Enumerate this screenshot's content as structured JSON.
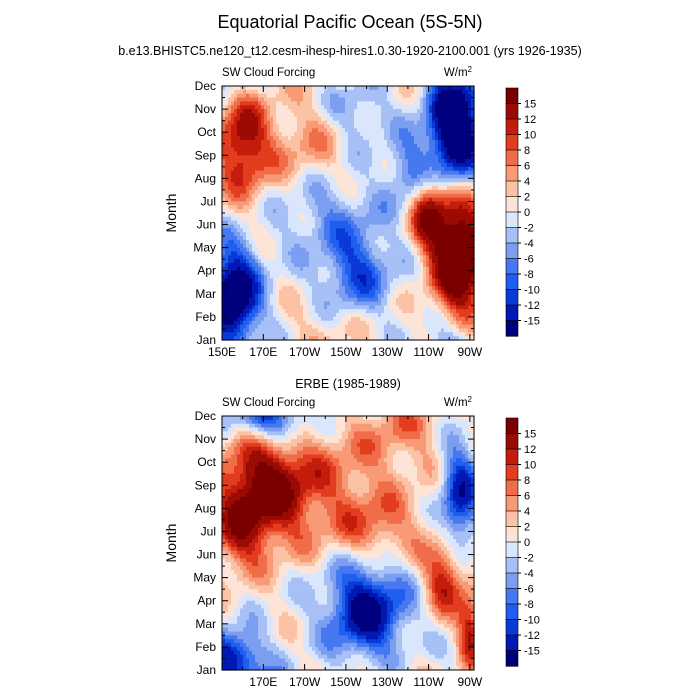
{
  "page": {
    "title": "Equatorial Pacific Ocean (5S-5N)",
    "subtitle": "b.e13.BHISTC5.ne120_t12.cesm-ihesp-hires1.0.30-1920-2100.001 (yrs 1926-1935)"
  },
  "colors": {
    "levels": [
      -15,
      -12,
      -10,
      -8,
      -6,
      -4,
      -2,
      0,
      2,
      4,
      6,
      8,
      10,
      12,
      15
    ],
    "palette": [
      "#00007f",
      "#0019b2",
      "#0a3ad6",
      "#1f5ff0",
      "#4678f0",
      "#7b9ef0",
      "#a7c0f5",
      "#dae6fb",
      "#fde4d6",
      "#fcc2a6",
      "#f99a76",
      "#f16c48",
      "#e23d1e",
      "#c41d0c",
      "#9c0a04",
      "#7a0000"
    ]
  },
  "chart_data": [
    {
      "type": "heatmap",
      "panel_title": "",
      "left_string": "SW Cloud Forcing",
      "units": "W/m2",
      "ylabel": "Month",
      "x_ticks": [
        "150E",
        "170E",
        "170W",
        "150W",
        "130W",
        "110W",
        "90W"
      ],
      "x_tick_values": [
        150,
        170,
        190,
        210,
        230,
        250,
        270
      ],
      "y_ticks": [
        "Jan",
        "Feb",
        "Mar",
        "Apr",
        "May",
        "Jun",
        "Jul",
        "Aug",
        "Sep",
        "Oct",
        "Nov",
        "Dec"
      ],
      "xlim": [
        150,
        272
      ],
      "ylim": [
        1,
        12
      ],
      "colorbar_labels": [
        "15",
        "12",
        "10",
        "8",
        "6",
        "4",
        "2",
        "0",
        "-2",
        "-4",
        "-6",
        "-8",
        "-10",
        "-12",
        "-15"
      ],
      "features": [
        {
          "lon": 265,
          "mon": 4.6,
          "slon": 9,
          "smon": 1.8,
          "amp": 24
        },
        {
          "lon": 250,
          "mon": 6.5,
          "slon": 6,
          "smon": 1.1,
          "amp": 14
        },
        {
          "lon": 263,
          "mon": 10.3,
          "slon": 9,
          "smon": 1.7,
          "amp": -24
        },
        {
          "lon": 240,
          "mon": 8.3,
          "slon": 8,
          "smon": 1.1,
          "amp": -7
        },
        {
          "lon": 155,
          "mon": 2.8,
          "slon": 9,
          "smon": 1.5,
          "amp": -22
        },
        {
          "lon": 160,
          "mon": 9.5,
          "slon": 9,
          "smon": 1.6,
          "amp": 14
        },
        {
          "lon": 215,
          "mon": 4.0,
          "slon": 12,
          "smon": 1.4,
          "amp": -10
        },
        {
          "lon": 198,
          "mon": 6.7,
          "slon": 16,
          "smon": 1.2,
          "amp": -5
        },
        {
          "lon": 215,
          "mon": 11,
          "slon": 10,
          "smon": 1.0,
          "amp": -5
        },
        {
          "lon": 205,
          "mon": 1.5,
          "slon": 16,
          "smon": 1.0,
          "amp": 3
        },
        {
          "lon": 190,
          "mon": 9.3,
          "slon": 14,
          "smon": 1.5,
          "amp": 5
        }
      ]
    },
    {
      "type": "heatmap",
      "panel_title": "ERBE (1985-1989)",
      "left_string": "SW Cloud Forcing",
      "units": "W/m2",
      "ylabel": "Month",
      "x_ticks": [
        "170E",
        "170W",
        "150W",
        "130W",
        "110W",
        "90W"
      ],
      "x_tick_values": [
        170,
        190,
        210,
        230,
        250,
        270
      ],
      "y_ticks": [
        "Jan",
        "Feb",
        "Mar",
        "Apr",
        "May",
        "Jun",
        "Jul",
        "Aug",
        "Sep",
        "Oct",
        "Nov",
        "Dec"
      ],
      "xlim": [
        150,
        272
      ],
      "ylim": [
        1,
        12
      ],
      "colorbar_labels": [
        "15",
        "12",
        "10",
        "8",
        "6",
        "4",
        "2",
        "0",
        "-2",
        "-4",
        "-6",
        "-8",
        "-10",
        "-12",
        "-15"
      ],
      "features": [
        {
          "lon": 170,
          "mon": 8.8,
          "slon": 15,
          "smon": 1.6,
          "amp": 16
        },
        {
          "lon": 220,
          "mon": 3.6,
          "slon": 13,
          "smon": 1.4,
          "amp": -17
        },
        {
          "lon": 155,
          "mon": 1.5,
          "slon": 10,
          "smon": 0.8,
          "amp": -15
        },
        {
          "lon": 175,
          "mon": 11.8,
          "slon": 12,
          "smon": 0.7,
          "amp": -12
        },
        {
          "lon": 265,
          "mon": 8.5,
          "slon": 6,
          "smon": 1.6,
          "amp": -14
        },
        {
          "lon": 258,
          "mon": 5.0,
          "slon": 7,
          "smon": 1.1,
          "amp": 12
        },
        {
          "lon": 270,
          "mon": 2.7,
          "slon": 4,
          "smon": 1.1,
          "amp": 12
        },
        {
          "lon": 205,
          "mon": 9.2,
          "slon": 25,
          "smon": 1.8,
          "amp": 6
        },
        {
          "lon": 225,
          "mon": 7.0,
          "slon": 15,
          "smon": 1.0,
          "amp": 6
        },
        {
          "lon": 158,
          "mon": 6.8,
          "slon": 9,
          "smon": 1.2,
          "amp": 8
        },
        {
          "lon": 238,
          "mon": 11.5,
          "slon": 14,
          "smon": 1.0,
          "amp": 5
        }
      ]
    }
  ]
}
